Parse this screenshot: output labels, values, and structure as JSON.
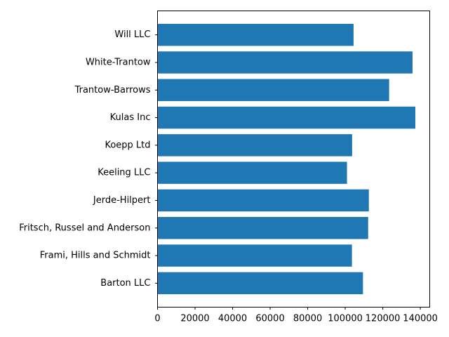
{
  "chart_data": {
    "type": "bar",
    "orientation": "horizontal",
    "categories": [
      "Barton LLC",
      "Frami, Hills and Schmidt",
      "Fritsch, Russel and Anderson",
      "Jerde-Hilpert",
      "Keeling LLC",
      "Koepp Ltd",
      "Kulas Inc",
      "Trantow-Barrows",
      "White-Trantow",
      "Will LLC"
    ],
    "values": [
      109438,
      103570,
      112214,
      112591,
      100934,
      103660,
      137352,
      123382,
      135841,
      104437
    ],
    "bar_color": "#1f77b4",
    "xlim": [
      0,
      145000
    ],
    "xticks": [
      0,
      20000,
      40000,
      60000,
      80000,
      100000,
      120000,
      140000
    ],
    "title": "",
    "xlabel": "",
    "ylabel": "",
    "grid": false
  }
}
